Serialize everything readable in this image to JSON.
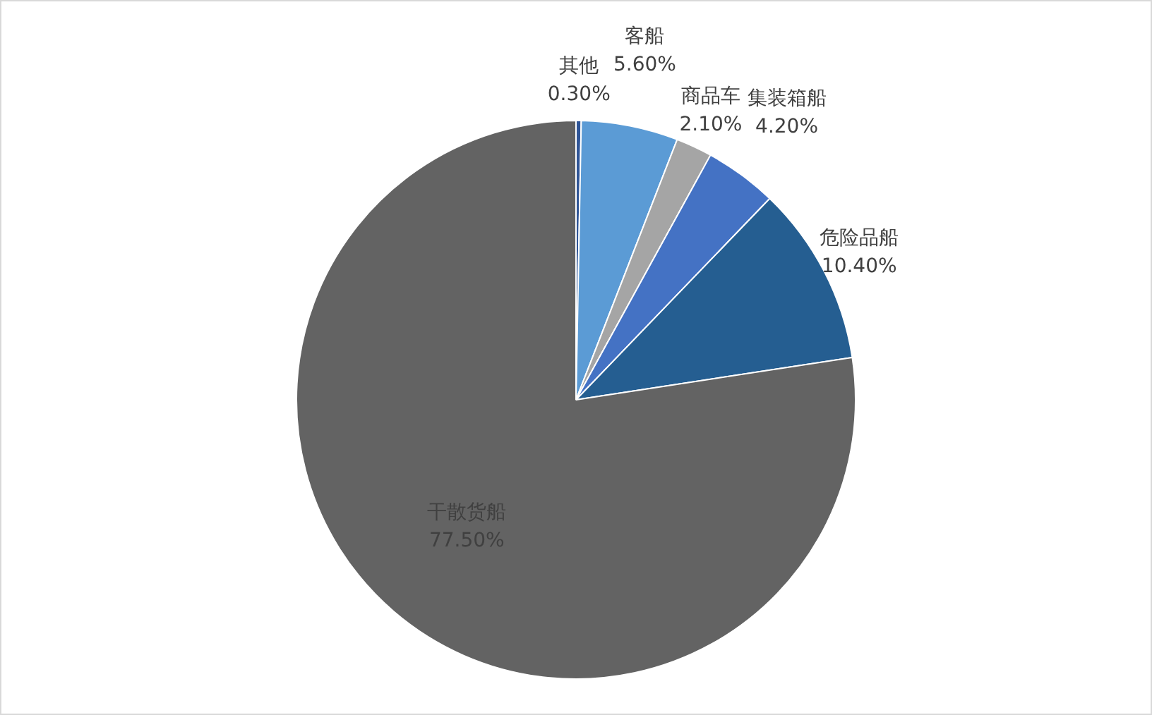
{
  "chart_data": {
    "type": "pie",
    "categories": [
      "其他",
      "客船",
      "商品车",
      "集装箱船",
      "危险品船",
      "干散货船"
    ],
    "values": [
      0.3,
      5.6,
      2.1,
      4.2,
      10.4,
      77.5
    ],
    "value_labels": [
      "0.30%",
      "5.60%",
      "2.10%",
      "4.20%",
      "10.40%",
      "77.50%"
    ],
    "colors": [
      "#2f5597",
      "#5b9bd5",
      "#a5a5a5",
      "#4472c4",
      "#255e91",
      "#636363"
    ],
    "legend": false
  }
}
